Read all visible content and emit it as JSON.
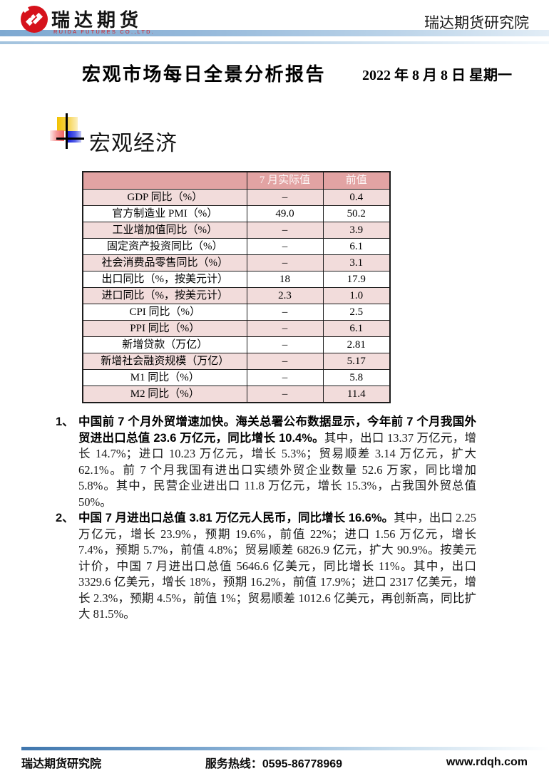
{
  "header": {
    "brand": "瑞达期货",
    "brand_sub": "RUIDA FUTURES CO.,LTD.",
    "institute": "瑞达期货研究院"
  },
  "report": {
    "title": "宏观市场每日全景分析报告",
    "date": "2022 年 8 月 8 日  星期一"
  },
  "section": {
    "title": "宏观经济"
  },
  "table": {
    "headers": [
      "",
      "7 月实际值",
      "前值"
    ],
    "rows": [
      [
        "GDP 同比（%）",
        "–",
        "0.4"
      ],
      [
        "官方制造业 PMI（%）",
        "49.0",
        "50.2"
      ],
      [
        "工业增加值同比（%）",
        "–",
        "3.9"
      ],
      [
        "固定资产投资同比（%）",
        "–",
        "6.1"
      ],
      [
        "社会消费品零售同比（%）",
        "–",
        "3.1"
      ],
      [
        "出口同比（%，按美元计）",
        "18",
        "17.9"
      ],
      [
        "进口同比（%，按美元计）",
        "2.3",
        "1.0"
      ],
      [
        "CPI 同比（%）",
        "–",
        "2.5"
      ],
      [
        "PPI 同比（%）",
        "–",
        "6.1"
      ],
      [
        "新增贷款（万亿）",
        "–",
        "2.81"
      ],
      [
        "新增社会融资规模（万亿）",
        "–",
        "5.17"
      ],
      [
        "M1 同比（%）",
        "–",
        "5.8"
      ],
      [
        "M2 同比（%）",
        "–",
        "11.4"
      ]
    ]
  },
  "paragraphs": [
    {
      "num": "1、",
      "bold": "中国前 7 个月外贸增速加快。海关总署公布数据显示，今年前 7 个月我国外贸进出口总值 23.6 万亿元，同比增长 10.4%。",
      "rest": "其中，出口 13.37 万亿元，增长 14.7%；进口 10.23 万亿元，增长 5.3%；贸易顺差 3.14 万亿元，扩大 62.1%。前 7 个月我国有进出口实绩外贸企业数量 52.6 万家，同比增加 5.8%。其中，民营企业进出口 11.8 万亿元，增长 15.3%，占我国外贸总值 50%。"
    },
    {
      "num": "2、",
      "bold": "中国 7 月进出口总值 3.81 万亿元人民币，同比增长 16.6%。",
      "rest": "其中，出口 2.25 万亿元，增长 23.9%，预期 19.6%，前值 22%；进口 1.56 万亿元，增长 7.4%，预期 5.7%，前值 4.8%；贸易顺差 6826.9 亿元，扩大 90.9%。按美元计价，中国 7 月进出口总值 5646.6 亿美元，同比增长 11%。其中，出口 3329.6 亿美元，增长 18%，预期 16.2%，前值 17.9%；进口 2317 亿美元，增长 2.3%，预期 4.5%，前值 1%；贸易顺差 1012.6 亿美元，再创新高，同比扩大 81.5%。"
    }
  ],
  "footer": {
    "institute": "瑞达期货研究院",
    "hotline": "服务热线：0595-86778969",
    "website": "www.rdqh.com"
  },
  "colors": {
    "brand_red": "#d6121b",
    "bar_blue": "#7ea9d1",
    "table_header_bg": "#e2a3a3",
    "table_alt_row_bg": "#f2dcdb"
  }
}
